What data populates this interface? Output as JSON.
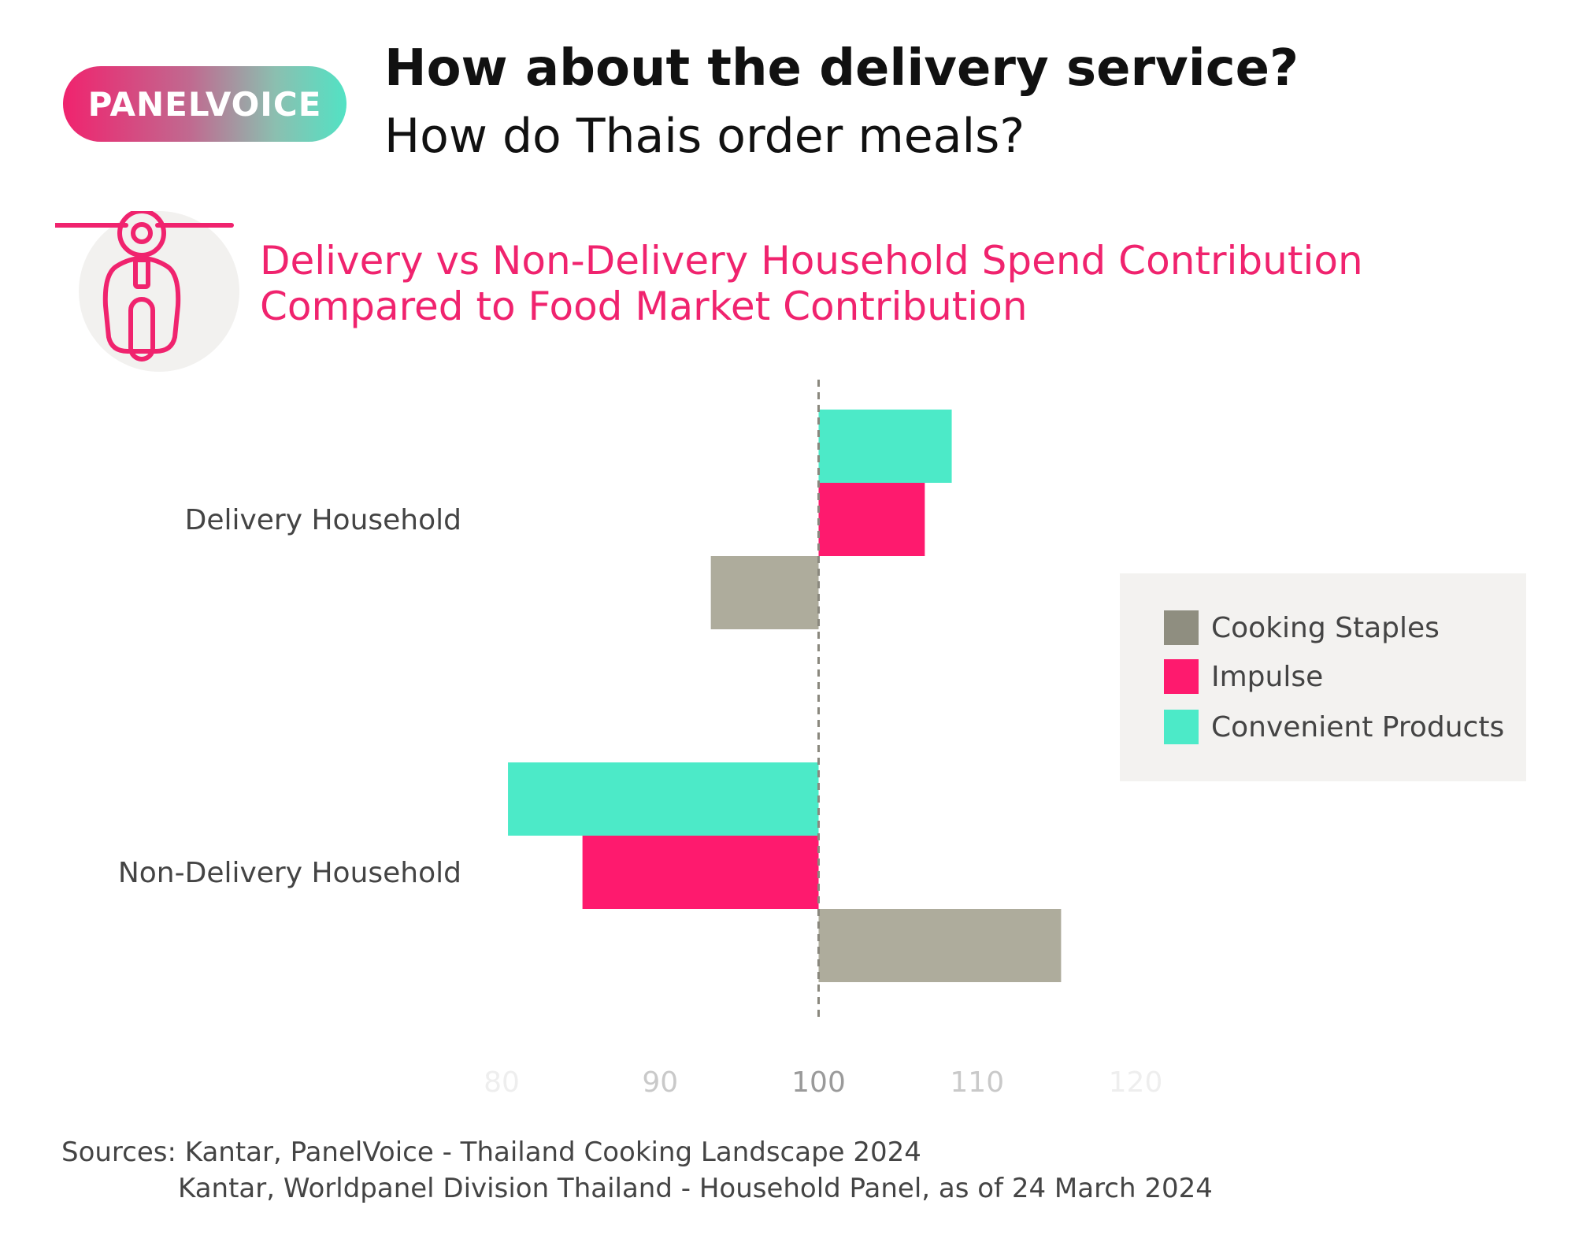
{
  "badge": {
    "label": "PANELVOICE"
  },
  "header": {
    "title": "How about the delivery service?",
    "subtitle": "How do Thais order meals?"
  },
  "icon": {
    "name": "scooter-icon"
  },
  "chart_title": {
    "line1": "Delivery vs Non-Delivery Household Spend Contribution",
    "line2": "Compared to Food Market Contribution"
  },
  "chart_data": {
    "type": "bar",
    "orientation": "horizontal",
    "title": "Delivery vs Non-Delivery Household Spend Contribution Compared to Food Market Contribution",
    "categories": [
      "Delivery Household",
      "Non-Delivery Household"
    ],
    "series": [
      {
        "name": "Convenient Products",
        "color": "#4ceac8",
        "values": [
          108.4,
          80.4
        ]
      },
      {
        "name": "Impulse",
        "color": "#fe1a6e",
        "values": [
          106.7,
          85.1
        ]
      },
      {
        "name": "Cooking Staples",
        "color": "#aeac9c",
        "values": [
          93.2,
          115.3
        ]
      }
    ],
    "baseline": 100,
    "xlim": [
      80,
      120
    ],
    "xticks": [
      80,
      90,
      100,
      110,
      120
    ],
    "legend_placement": "right",
    "grid": false
  },
  "legend": {
    "items": [
      {
        "label": "Cooking Staples",
        "color": "#8f8e80"
      },
      {
        "label": "Impulse",
        "color": "#fe1a6e"
      },
      {
        "label": "Convenient Products",
        "color": "#4ceac8"
      }
    ]
  },
  "sources": {
    "line1": "Sources: Kantar, PanelVoice - Thailand Cooking Landscape 2024",
    "line2": "Kantar, Worldpanel Division Thailand - Household Panel, as of 24 March 2024"
  }
}
